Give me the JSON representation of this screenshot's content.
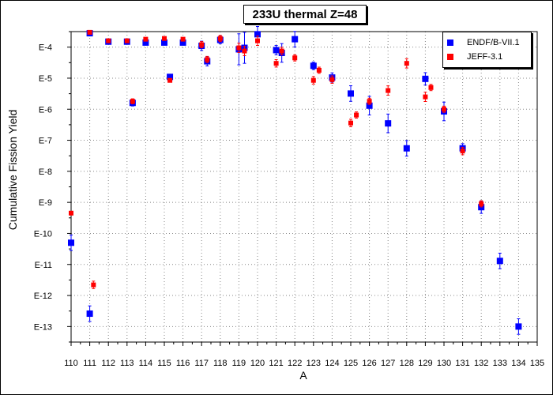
{
  "chart_data": {
    "type": "scatter",
    "title": "233U thermal Z=48",
    "xlabel": "A",
    "ylabel": "Cumulative Fission Yield",
    "xlim": [
      110,
      135
    ],
    "ylim_log10": [
      -13.5,
      -3.5
    ],
    "y_scale": "log",
    "y_tick_labels": [
      "E-4",
      "E-5",
      "E-6",
      "E-7",
      "E-8",
      "E-9",
      "E-10",
      "E-11",
      "E-12",
      "E-13"
    ],
    "x_ticks": [
      110,
      111,
      112,
      113,
      114,
      115,
      116,
      117,
      118,
      119,
      120,
      121,
      122,
      123,
      124,
      125,
      126,
      127,
      128,
      129,
      130,
      131,
      132,
      133,
      134,
      135
    ],
    "grid": true,
    "legend_position": "top-right",
    "series": [
      {
        "name": "ENDF/B-VII.1",
        "color": "#0000ff",
        "points": [
          {
            "x": 110,
            "y": 5e-11,
            "err": 0.25
          },
          {
            "x": 111,
            "y": 0.00028,
            "err": 0.05
          },
          {
            "x": 111,
            "y": 2.6e-13,
            "err": 0.25
          },
          {
            "x": 112,
            "y": 0.00015,
            "err": 0.04
          },
          {
            "x": 113,
            "y": 0.00015,
            "err": 0.04
          },
          {
            "x": 113.3,
            "y": 1.6e-06,
            "err": 0.1
          },
          {
            "x": 114,
            "y": 0.00014,
            "err": 0.04
          },
          {
            "x": 115,
            "y": 0.00014,
            "err": 0.06
          },
          {
            "x": 115.3,
            "y": 1.1e-05,
            "err": 0.05
          },
          {
            "x": 116,
            "y": 0.00014,
            "err": 0.05
          },
          {
            "x": 117,
            "y": 0.00011,
            "err": 0.15
          },
          {
            "x": 117.3,
            "y": 3.5e-05,
            "err": 0.15
          },
          {
            "x": 118,
            "y": 0.00017,
            "err": 0.12
          },
          {
            "x": 119,
            "y": 8.5e-05,
            "err": 0.5
          },
          {
            "x": 119.3,
            "y": 9.5e-05,
            "err": 0.5
          },
          {
            "x": 120,
            "y": 0.00026,
            "err": 0.25
          },
          {
            "x": 121,
            "y": 8e-05,
            "err": 0.15
          },
          {
            "x": 121.3,
            "y": 6.5e-05,
            "err": 0.3
          },
          {
            "x": 122,
            "y": 0.00018,
            "err": 0.25
          },
          {
            "x": 123,
            "y": 2.5e-05,
            "err": 0.12
          },
          {
            "x": 124,
            "y": 1.05e-05,
            "err": 0.15
          },
          {
            "x": 125,
            "y": 3.2e-06,
            "err": 0.25
          },
          {
            "x": 126,
            "y": 1.3e-06,
            "err": 0.3
          },
          {
            "x": 127,
            "y": 3.5e-07,
            "err": 0.3
          },
          {
            "x": 128,
            "y": 5.5e-08,
            "err": 0.25
          },
          {
            "x": 129,
            "y": 9.5e-06,
            "err": 0.2
          },
          {
            "x": 130,
            "y": 8.5e-07,
            "err": 0.3
          },
          {
            "x": 131,
            "y": 5.5e-08,
            "err": 0.15
          },
          {
            "x": 132,
            "y": 7e-10,
            "err": 0.2
          },
          {
            "x": 133,
            "y": 1.3e-11,
            "err": 0.25
          },
          {
            "x": 134,
            "y": 1e-13,
            "err": 0.25
          }
        ]
      },
      {
        "name": "JEFF-3.1",
        "color": "#ff0000",
        "points": [
          {
            "x": 110,
            "y": 4.5e-10,
            "err": 0
          },
          {
            "x": 111,
            "y": 0.0003,
            "err": 0.05
          },
          {
            "x": 111.2,
            "y": 2.2e-12,
            "err": 0.12
          },
          {
            "x": 112,
            "y": 0.00016,
            "err": 0.04
          },
          {
            "x": 113,
            "y": 0.00016,
            "err": 0.04
          },
          {
            "x": 113.3,
            "y": 1.8e-06,
            "err": 0.08
          },
          {
            "x": 114,
            "y": 0.00018,
            "err": 0.04
          },
          {
            "x": 115,
            "y": 0.00019,
            "err": 0.04
          },
          {
            "x": 115.3,
            "y": 8.5e-06,
            "err": 0.05
          },
          {
            "x": 116,
            "y": 0.00018,
            "err": 0.05
          },
          {
            "x": 117,
            "y": 0.00012,
            "err": 0.1
          },
          {
            "x": 117.3,
            "y": 4e-05,
            "err": 0.1
          },
          {
            "x": 118,
            "y": 0.00019,
            "err": 0.1
          },
          {
            "x": 119,
            "y": 9.5e-05,
            "err": 0.15
          },
          {
            "x": 119.3,
            "y": 7.5e-05,
            "err": 0.15
          },
          {
            "x": 120,
            "y": 0.00016,
            "err": 0.15
          },
          {
            "x": 121,
            "y": 3e-05,
            "err": 0.12
          },
          {
            "x": 121.3,
            "y": 7.5e-05,
            "err": 0.12
          },
          {
            "x": 122,
            "y": 4.5e-05,
            "err": 0.1
          },
          {
            "x": 123,
            "y": 8.5e-06,
            "err": 0.12
          },
          {
            "x": 123.3,
            "y": 1.8e-05,
            "err": 0.1
          },
          {
            "x": 124,
            "y": 9e-06,
            "err": 0.12
          },
          {
            "x": 125,
            "y": 3.6e-07,
            "err": 0.12
          },
          {
            "x": 125.3,
            "y": 6.5e-07,
            "err": 0.1
          },
          {
            "x": 126,
            "y": 1.8e-06,
            "err": 0.1
          },
          {
            "x": 127,
            "y": 4e-06,
            "err": 0.15
          },
          {
            "x": 128,
            "y": 3e-05,
            "err": 0.15
          },
          {
            "x": 129,
            "y": 2.5e-06,
            "err": 0.15
          },
          {
            "x": 129.3,
            "y": 5e-06,
            "err": 0.1
          },
          {
            "x": 130,
            "y": 1e-06,
            "err": 0.1
          },
          {
            "x": 131,
            "y": 4.5e-08,
            "err": 0.12
          },
          {
            "x": 132,
            "y": 9e-10,
            "err": 0.1
          }
        ]
      }
    ]
  }
}
